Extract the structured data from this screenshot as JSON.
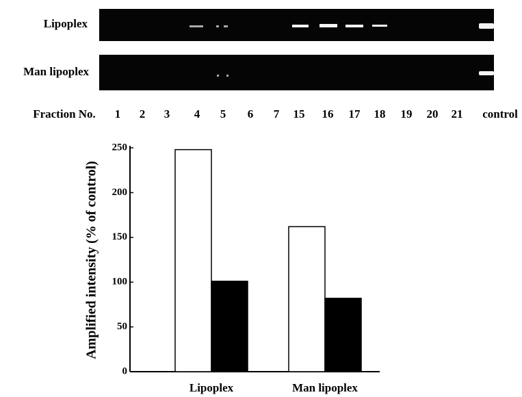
{
  "gel": {
    "rows": [
      "Lipoplex",
      "Man lipoplex"
    ],
    "fraction_label": "Fraction No.",
    "lanes": [
      "1",
      "2",
      "3",
      "4",
      "5",
      "6",
      "7",
      "15",
      "16",
      "17",
      "18",
      "19",
      "20",
      "21",
      "control"
    ]
  },
  "chart_data": {
    "type": "bar",
    "y_label": "Amplified intensity (% of control)",
    "categories": [
      "Lipoplex",
      "Man lipoplex"
    ],
    "series": [
      {
        "color": "#ffffff",
        "values": [
          248,
          162
        ]
      },
      {
        "color": "#000000",
        "values": [
          101,
          82
        ]
      }
    ],
    "ylim": [
      0,
      250
    ],
    "yticks": [
      0,
      50,
      100,
      150,
      200,
      250
    ]
  }
}
